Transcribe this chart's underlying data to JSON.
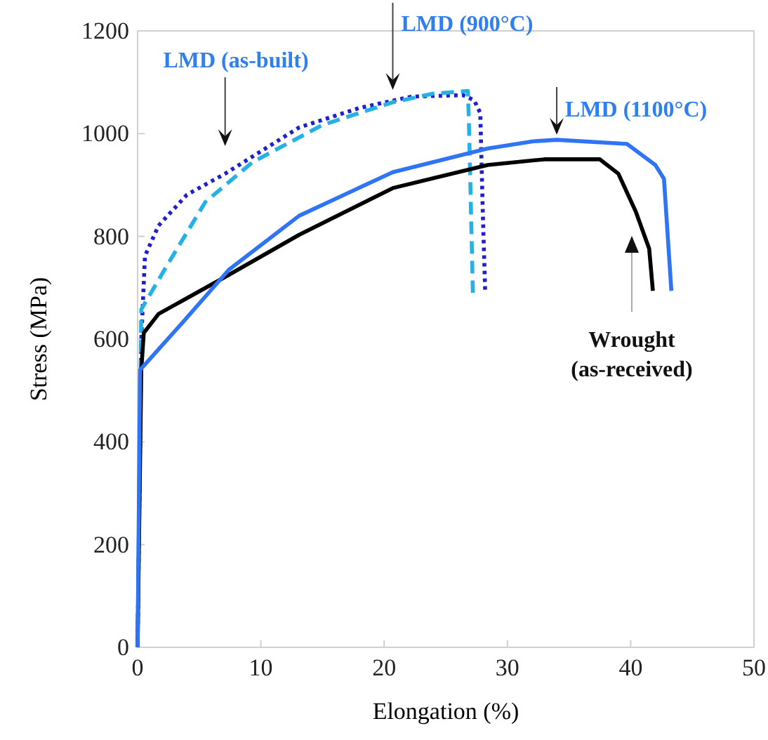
{
  "chart_data": {
    "type": "line",
    "xlabel": "Elongation (%)",
    "ylabel": "Stress (MPa)",
    "xlim": [
      0,
      50
    ],
    "xticks": [
      0,
      10,
      20,
      30,
      40,
      50
    ],
    "ylim": [
      0,
      1200
    ],
    "yticks": [
      0,
      200,
      400,
      600,
      800,
      1000,
      1200
    ],
    "grid": false,
    "marker": "none",
    "series": [
      {
        "name": "LMD (as-built)",
        "color": "#1f1fd0",
        "line_style": "dotted",
        "x": [
          0,
          0.3,
          0.6,
          1.7,
          4,
          7.1,
          13.1,
          18,
          22.2,
          26.4,
          27.3,
          27.8,
          28,
          28.2
        ],
        "values": [
          0,
          600,
          762,
          821,
          881,
          922,
          1012,
          1050,
          1072,
          1075,
          1065,
          1040,
          850,
          690
        ]
      },
      {
        "name": "LMD (900°C)",
        "color": "#25b0e6",
        "line_style": "dashed",
        "x": [
          0,
          0.3,
          2.5,
          5.5,
          9.3,
          15,
          20.7,
          24,
          26.8,
          26.9,
          27.2
        ],
        "values": [
          0,
          658,
          748,
          867,
          944,
          1017,
          1061,
          1078,
          1083,
          1000,
          690
        ]
      },
      {
        "name": "Wrought\n(as-received)",
        "color": "#000000",
        "line_style": "solid",
        "x": [
          0,
          0.3,
          0.5,
          1.7,
          7.1,
          13.1,
          20.7,
          28.4,
          33,
          37.5,
          39,
          40.4,
          41.5,
          41.8
        ],
        "values": [
          0,
          540,
          612,
          649,
          721,
          803,
          894,
          939,
          950,
          950,
          922,
          849,
          776,
          694
        ]
      },
      {
        "name": "LMD (1100°C)",
        "color": "#2f74f5",
        "line_style": "solid",
        "x": [
          0,
          0.2,
          3.6,
          7.4,
          13.1,
          20.7,
          28.4,
          32.1,
          34,
          39.7,
          42,
          42.7,
          43.3
        ],
        "values": [
          0,
          540,
          631,
          735,
          840,
          925,
          971,
          985,
          988,
          980,
          939,
          912,
          694
        ]
      }
    ]
  }
}
